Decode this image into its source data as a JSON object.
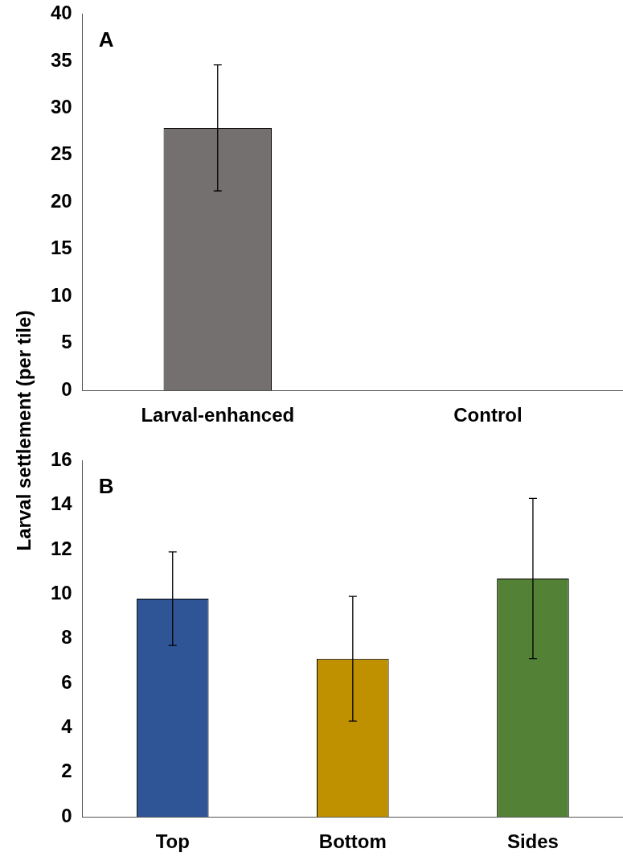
{
  "chart_data": [
    {
      "type": "bar",
      "ylabel": "Larval settlement (per tile)",
      "annotations": [
        "A"
      ],
      "categories": [
        "Larval-enhanced",
        "Control"
      ],
      "values": [
        27.9,
        0
      ],
      "errors": [
        6.7,
        null
      ],
      "colors": [
        "#747070",
        "#747070"
      ],
      "ylim": [
        0,
        40
      ],
      "yticks": [
        0,
        5,
        10,
        15,
        20,
        25,
        30,
        35,
        40
      ],
      "grid": false,
      "legend": false
    },
    {
      "type": "bar",
      "annotations": [
        "B"
      ],
      "categories": [
        "Top",
        "Bottom",
        "Sides"
      ],
      "values": [
        9.8,
        7.1,
        10.7
      ],
      "errors": [
        2.1,
        2.8,
        3.6
      ],
      "colors": [
        "#2f5597",
        "#bf9000",
        "#538135"
      ],
      "ylim": [
        0,
        16
      ],
      "yticks": [
        0,
        2,
        4,
        6,
        8,
        10,
        12,
        14,
        16
      ],
      "grid": false,
      "legend": false
    }
  ]
}
